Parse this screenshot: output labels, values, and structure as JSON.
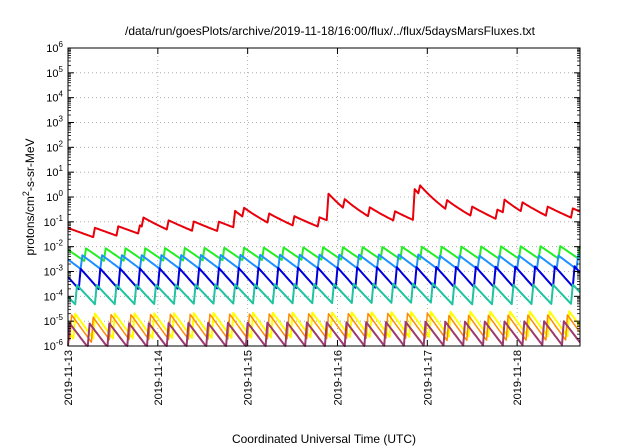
{
  "chart_data": {
    "type": "line",
    "title": "/data/run/goesPlots/archive/2019-11-18/16:00/flux/../flux/5daysMarsFluxes.txt",
    "xlabel": "Coordinated Universal Time (UTC)",
    "ylabel_base": "protons/cm",
    "ylabel_sup": "2",
    "ylabel_rest": "-s-sr-MeV",
    "y_scale": "log",
    "ylim": [
      1e-06,
      1000000.0
    ],
    "xlim": [
      0,
      5.7
    ],
    "grid": true,
    "x_ticks": [
      {
        "x": 0,
        "label": "2019-11-13"
      },
      {
        "x": 1,
        "label": "2019-11-14"
      },
      {
        "x": 2,
        "label": "2019-11-15"
      },
      {
        "x": 3,
        "label": "2019-11-16"
      },
      {
        "x": 4,
        "label": "2019-11-17"
      },
      {
        "x": 5,
        "label": "2019-11-18"
      }
    ],
    "y_ticks": [
      {
        "exp": -6,
        "label_base": "10",
        "label_sup": "-6"
      },
      {
        "exp": -5,
        "label_base": "10",
        "label_sup": "-5"
      },
      {
        "exp": -4,
        "label_base": "10",
        "label_sup": "-4"
      },
      {
        "exp": -3,
        "label_base": "10",
        "label_sup": "-3"
      },
      {
        "exp": -2,
        "label_base": "10",
        "label_sup": "-2"
      },
      {
        "exp": -1,
        "label_base": "10",
        "label_sup": "-1"
      },
      {
        "exp": 0,
        "label_base": "10",
        "label_sup": "0"
      },
      {
        "exp": 1,
        "label_base": "10",
        "label_sup": "1"
      },
      {
        "exp": 2,
        "label_base": "10",
        "label_sup": "2"
      },
      {
        "exp": 3,
        "label_base": "10",
        "label_sup": "3"
      },
      {
        "exp": 4,
        "label_base": "10",
        "label_sup": "4"
      },
      {
        "exp": 5,
        "label_base": "10",
        "label_sup": "5"
      },
      {
        "exp": 6,
        "label_base": "10",
        "label_sup": "6"
      }
    ],
    "series": [
      {
        "color": "#e8000b",
        "width": 2,
        "base": -1.3,
        "lo": -0.35,
        "hi": 0.05,
        "period": 0.28,
        "bumps": [
          [
            0.8,
            0.35
          ],
          [
            1.85,
            0.7
          ],
          [
            2.9,
            1.1
          ],
          [
            3.85,
            1.3
          ],
          [
            4.85,
            0.55
          ]
        ],
        "trend_end": -0.6
      },
      {
        "color": "#22ee22",
        "width": 2,
        "base": -2.3,
        "lo": -0.3,
        "hi": 0.25,
        "period": 0.22,
        "bumps": [],
        "trend_end": -2.2
      },
      {
        "color": "#1e90ff",
        "width": 2,
        "base": -2.6,
        "lo": -0.35,
        "hi": 0.25,
        "period": 0.22,
        "bumps": [],
        "trend_end": -2.55
      },
      {
        "color": "#0000dd",
        "width": 2,
        "base": -3.2,
        "lo": -0.55,
        "hi": 0.35,
        "period": 0.22,
        "bumps": [],
        "trend_end": -3.1
      },
      {
        "color": "#1fc4a0",
        "width": 2,
        "base": -3.9,
        "lo": -0.5,
        "hi": 0.35,
        "period": 0.22,
        "bumps": [],
        "trend_end": -3.8
      },
      {
        "color": "#ffff00",
        "width": 2,
        "base": -5.1,
        "lo": -0.65,
        "hi": 0.45,
        "period": 0.22,
        "bumps": [],
        "trend_end": -5.0
      },
      {
        "color": "#ff8c00",
        "width": 1.5,
        "base": -5.15,
        "lo": -0.7,
        "hi": 0.4,
        "period": 0.22,
        "bumps": [],
        "trend_end": -5.05
      },
      {
        "color": "#9b3a6e",
        "width": 2,
        "base": -5.35,
        "lo": -0.75,
        "hi": 0.3,
        "period": 0.22,
        "bumps": [],
        "trend_end": -5.25
      }
    ]
  }
}
